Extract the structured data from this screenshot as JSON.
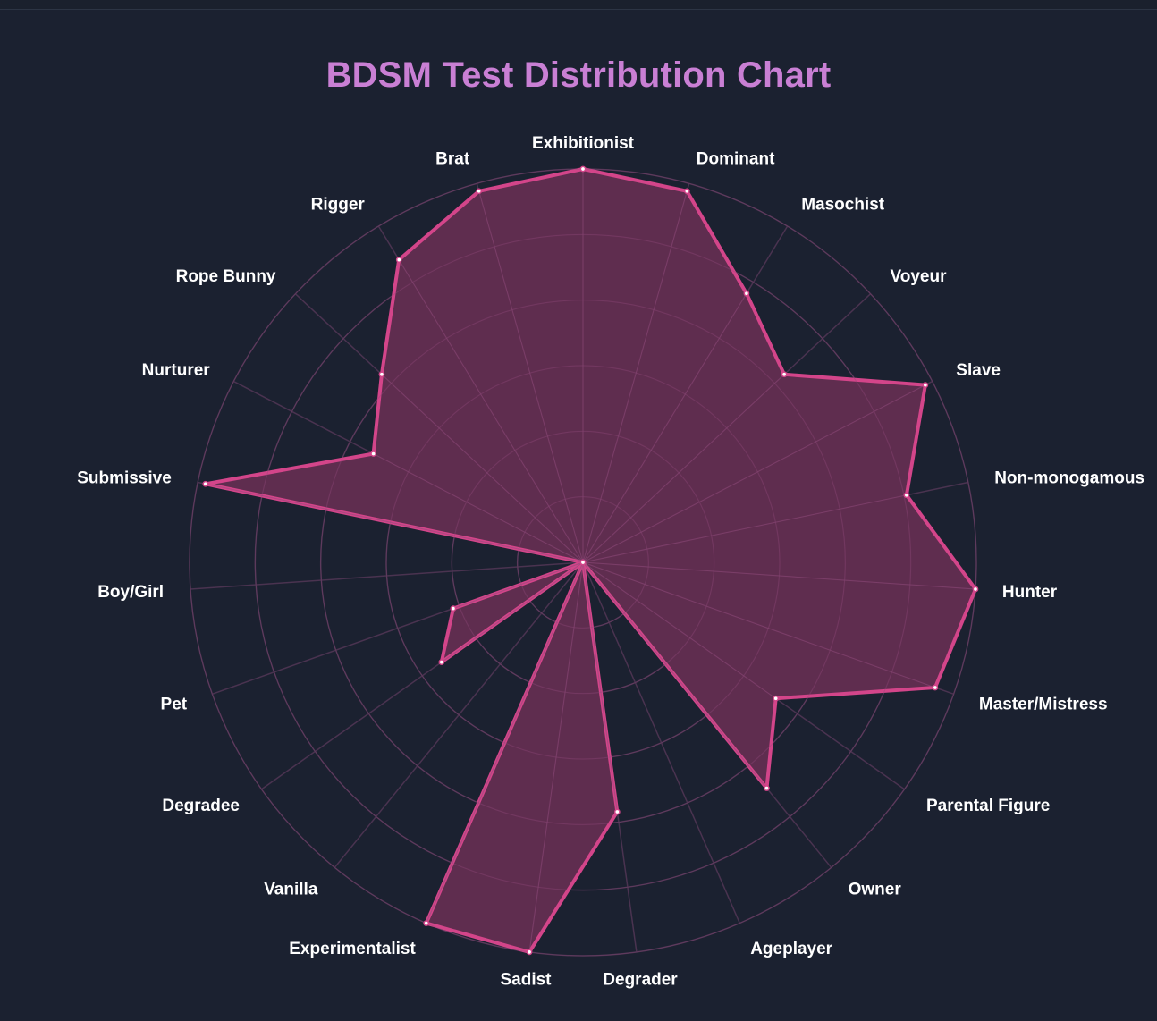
{
  "title": "BDSM Test Distribution Chart",
  "colors": {
    "background": "#1b2130",
    "title": "#c97fd4",
    "series_stroke": "#d3458a",
    "series_fill": "#6b2f55",
    "grid": "#4a3350",
    "label": "#ffffff"
  },
  "chart_data": {
    "type": "radar",
    "title": "BDSM Test Distribution Chart",
    "categories": [
      "Exhibitionist",
      "Dominant",
      "Masochist",
      "Voyeur",
      "Slave",
      "Non-monogamous",
      "Hunter",
      "Master/Mistress",
      "Parental Figure",
      "Owner",
      "Ageplayer",
      "Degrader",
      "Sadist",
      "Experimentalist",
      "Vanilla",
      "Degradee",
      "Pet",
      "Boy/Girl",
      "Submissive",
      "Nurturer",
      "Rope Bunny",
      "Rigger",
      "Brat"
    ],
    "series": [
      {
        "values": [
          100,
          98,
          80,
          70,
          98,
          84,
          100,
          95,
          60,
          74,
          0,
          64,
          100,
          100,
          0,
          44,
          35,
          0,
          98,
          60,
          70,
          90,
          98
        ]
      }
    ],
    "rlim": [
      0,
      100
    ],
    "grid_rings": 6,
    "grid": true,
    "legend": false
  }
}
